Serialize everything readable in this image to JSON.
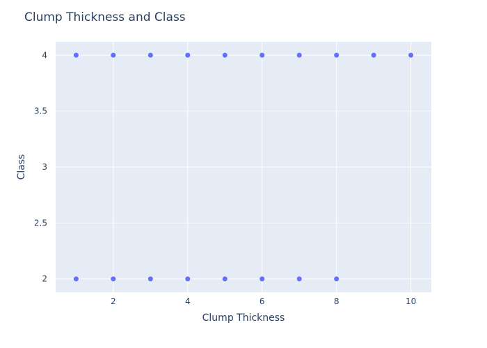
{
  "chart_data": {
    "type": "scatter",
    "title": "Clump Thickness and Class",
    "xlabel": "Clump Thickness",
    "ylabel": "Class",
    "xlim": [
      0.45,
      10.55
    ],
    "ylim": [
      1.88,
      4.12
    ],
    "xticks": [
      2,
      4,
      6,
      8,
      10
    ],
    "xtick_labels": [
      "2",
      "4",
      "6",
      "8",
      "10"
    ],
    "yticks": [
      2,
      2.5,
      3,
      3.5,
      4
    ],
    "ytick_labels": [
      "2",
      "2.5",
      "3",
      "3.5",
      "4"
    ],
    "grid": true,
    "plot_bg": "#e5ecf6",
    "grid_color": "#ffffff",
    "marker_color": "#636efa",
    "series": [
      {
        "x": [
          1,
          2,
          3,
          4,
          5,
          6,
          7,
          8,
          9,
          10,
          1,
          2,
          3,
          4,
          5,
          6,
          7,
          8
        ],
        "y": [
          4,
          4,
          4,
          4,
          4,
          4,
          4,
          4,
          4,
          4,
          2,
          2,
          2,
          2,
          2,
          2,
          2,
          2
        ]
      }
    ]
  }
}
